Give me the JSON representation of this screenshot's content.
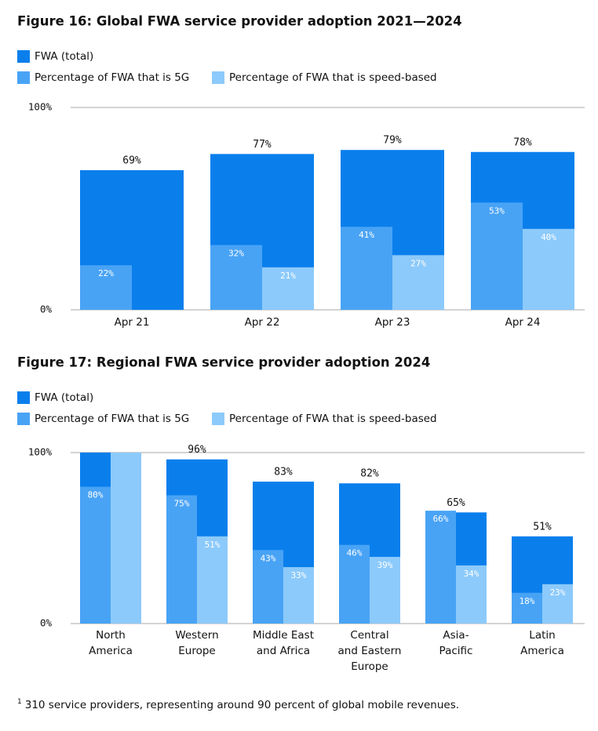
{
  "chart_data": [
    {
      "type": "bar",
      "title": "Figure 16: Global FWA service provider adoption 2021—2024",
      "categories": [
        [
          "Apr 21"
        ],
        [
          "Apr 22"
        ],
        [
          "Apr 23"
        ],
        [
          "Apr 24"
        ]
      ],
      "series": [
        {
          "name": "FWA (total)",
          "color": "#0a7fec",
          "values": [
            69,
            77,
            79,
            78
          ],
          "value_labels": [
            "69%",
            "77%",
            "79%",
            "78%"
          ]
        },
        {
          "name": "Percentage of FWA that is 5G",
          "color": "#49a3f5",
          "values": [
            22,
            32,
            41,
            53
          ],
          "value_labels": [
            "22%",
            "32%",
            "41%",
            "53%"
          ]
        },
        {
          "name": "Percentage of FWA that is speed-based",
          "color": "#8ccafb",
          "values": [
            null,
            21,
            27,
            40
          ],
          "value_labels": [
            null,
            "21%",
            "27%",
            "40%"
          ]
        }
      ],
      "ylim": [
        0,
        100
      ],
      "yticks": [
        {
          "value": 0,
          "label": "0%"
        },
        {
          "value": 100,
          "label": "100%"
        }
      ],
      "grid": true
    },
    {
      "type": "bar",
      "title": "Figure 17: Regional FWA service provider adoption 2024",
      "categories": [
        [
          "North",
          "America"
        ],
        [
          "Western",
          "Europe"
        ],
        [
          "Middle East",
          "and Africa"
        ],
        [
          "Central",
          "and Eastern",
          "Europe"
        ],
        [
          "Asia-",
          "Pacific"
        ],
        [
          "Latin",
          "America"
        ]
      ],
      "series": [
        {
          "name": "FWA (total)",
          "color": "#0a7fec",
          "values": [
            100,
            96,
            83,
            82,
            65,
            51
          ],
          "value_labels": [
            null,
            "96%",
            "83%",
            "82%",
            "65%",
            "51%"
          ]
        },
        {
          "name": "Percentage of FWA that is 5G",
          "color": "#49a3f5",
          "values": [
            80,
            75,
            43,
            46,
            66,
            18
          ],
          "value_labels": [
            "80%",
            "75%",
            "43%",
            "46%",
            "66%",
            "18%"
          ]
        },
        {
          "name": "Percentage of FWA that is speed-based",
          "color": "#8ccafb",
          "values": [
            100,
            51,
            33,
            39,
            34,
            23
          ],
          "value_labels": [
            null,
            "51%",
            "33%",
            "39%",
            "34%",
            "23%"
          ]
        }
      ],
      "ylim": [
        0,
        100
      ],
      "yticks": [
        {
          "value": 0,
          "label": "0%"
        },
        {
          "value": 100,
          "label": "100%"
        }
      ],
      "grid": true
    }
  ],
  "footnote": {
    "mark": "1",
    "text": "310 service providers, representing around 90 percent of global mobile revenues."
  }
}
